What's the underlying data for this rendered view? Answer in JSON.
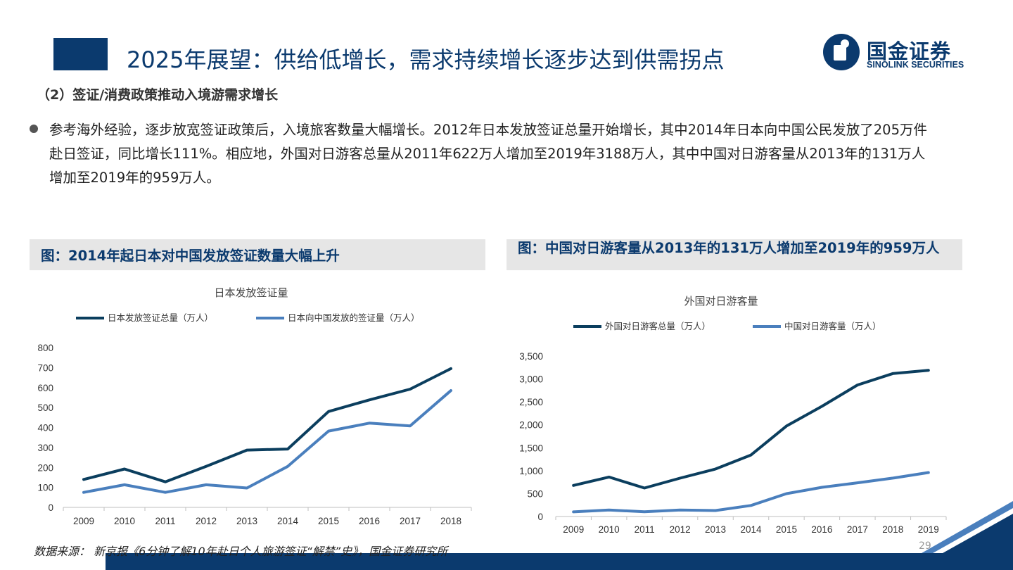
{
  "header": {
    "title": "2025年展望：供给低增长，需求持续增长逐步达到供需拐点",
    "logo_cn": "国金证券",
    "logo_en": "SINOLINK SECURITIES"
  },
  "subtitle": "（2）签证/消费政策推动入境游需求增长",
  "bullet": "参考海外经验，逐步放宽签证政策后，入境旅客数量大幅增长。2012年日本发放签证总量开始增长，其中2014年日本向中国公民发放了205万件赴日签证，同比增长111%。相应地，外国对日游客总量从2011年622万人增加至2019年3188万人，其中中国对日游客量从2013年的131万人增加至2019年的959万人。",
  "figure_left": {
    "heading": "图：2014年起日本对中国发放签证数量大幅上升"
  },
  "figure_right": {
    "heading": "图：中国对日游客量从2013年的131万人增加至2019年的959万人"
  },
  "chart_data": [
    {
      "type": "line",
      "title": "日本发放签证量",
      "categories": [
        "2009",
        "2010",
        "2011",
        "2012",
        "2013",
        "2014",
        "2015",
        "2016",
        "2017",
        "2018"
      ],
      "ylim": [
        0,
        800
      ],
      "yticks": [
        "0",
        "100",
        "200",
        "300",
        "400",
        "500",
        "600",
        "700",
        "800"
      ],
      "grid": false,
      "legend": "top",
      "series": [
        {
          "name": "日本发放签证总量（万人）",
          "color": "#0b3e5e",
          "values": [
            140,
            192,
            128,
            205,
            287,
            292,
            480,
            538,
            592,
            695
          ]
        },
        {
          "name": "日本向中国发放的签证量（万人）",
          "color": "#4a7fbd",
          "values": [
            75,
            113,
            75,
            113,
            97,
            205,
            382,
            422,
            408,
            585
          ]
        }
      ]
    },
    {
      "type": "line",
      "title": "外国对日游客量",
      "categories": [
        "2009",
        "2010",
        "2011",
        "2012",
        "2013",
        "2014",
        "2015",
        "2016",
        "2017",
        "2018",
        "2019"
      ],
      "ylim": [
        0,
        3500
      ],
      "yticks": [
        "0",
        "500",
        "1,000",
        "1,500",
        "2,000",
        "2,500",
        "3,000",
        "3,500"
      ],
      "grid": false,
      "legend": "top",
      "series": [
        {
          "name": "外国对日游客总量（万人）",
          "color": "#0b3e5e",
          "values": [
            679,
            861,
            622,
            836,
            1036,
            1341,
            1974,
            2404,
            2869,
            3119,
            3188
          ]
        },
        {
          "name": "中国对日游客量（万人）",
          "color": "#4a7fbd",
          "values": [
            101,
            141,
            104,
            143,
            131,
            241,
            499,
            637,
            736,
            838,
            959
          ]
        }
      ]
    }
  ],
  "source": "数据来源： 新京报《6分钟了解10年赴日个人旅游签证“解禁”史》，国金证券研究所",
  "page_number": "29"
}
